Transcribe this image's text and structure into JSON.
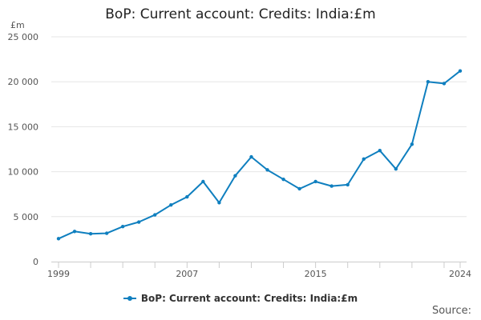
{
  "chart_data": {
    "type": "line",
    "title": "BoP: Current account: Credits: India:£m",
    "ylabel": "£m",
    "xlabel": "",
    "ylim": [
      0,
      25000
    ],
    "yticks": [
      0,
      5000,
      10000,
      15000,
      20000,
      25000
    ],
    "ytick_labels": [
      "0",
      "5 000",
      "10 000",
      "15 000",
      "20 000",
      "25 000"
    ],
    "xlim": [
      1999,
      2024
    ],
    "xtick_labels": [
      "1999",
      "2007",
      "2015",
      "2024"
    ],
    "xtick_values": [
      1999,
      2007,
      2015,
      2024
    ],
    "grid": true,
    "legend_position": "bottom",
    "series": [
      {
        "name": "BoP: Current account: Credits: India:£m",
        "color": "#0F7FBF",
        "x": [
          1999,
          2000,
          2001,
          2002,
          2003,
          2004,
          2005,
          2006,
          2007,
          2008,
          2009,
          2010,
          2011,
          2012,
          2013,
          2014,
          2015,
          2016,
          2017,
          2018,
          2019,
          2020,
          2021,
          2022,
          2023,
          2024
        ],
        "values": [
          2550,
          3350,
          3100,
          3150,
          3900,
          4400,
          5200,
          6300,
          7200,
          8900,
          6550,
          9550,
          11650,
          10200,
          9150,
          8100,
          8900,
          8400,
          8550,
          11400,
          12350,
          10300,
          13050,
          20000,
          19800,
          21200
        ]
      }
    ]
  },
  "source_label": "Source:"
}
